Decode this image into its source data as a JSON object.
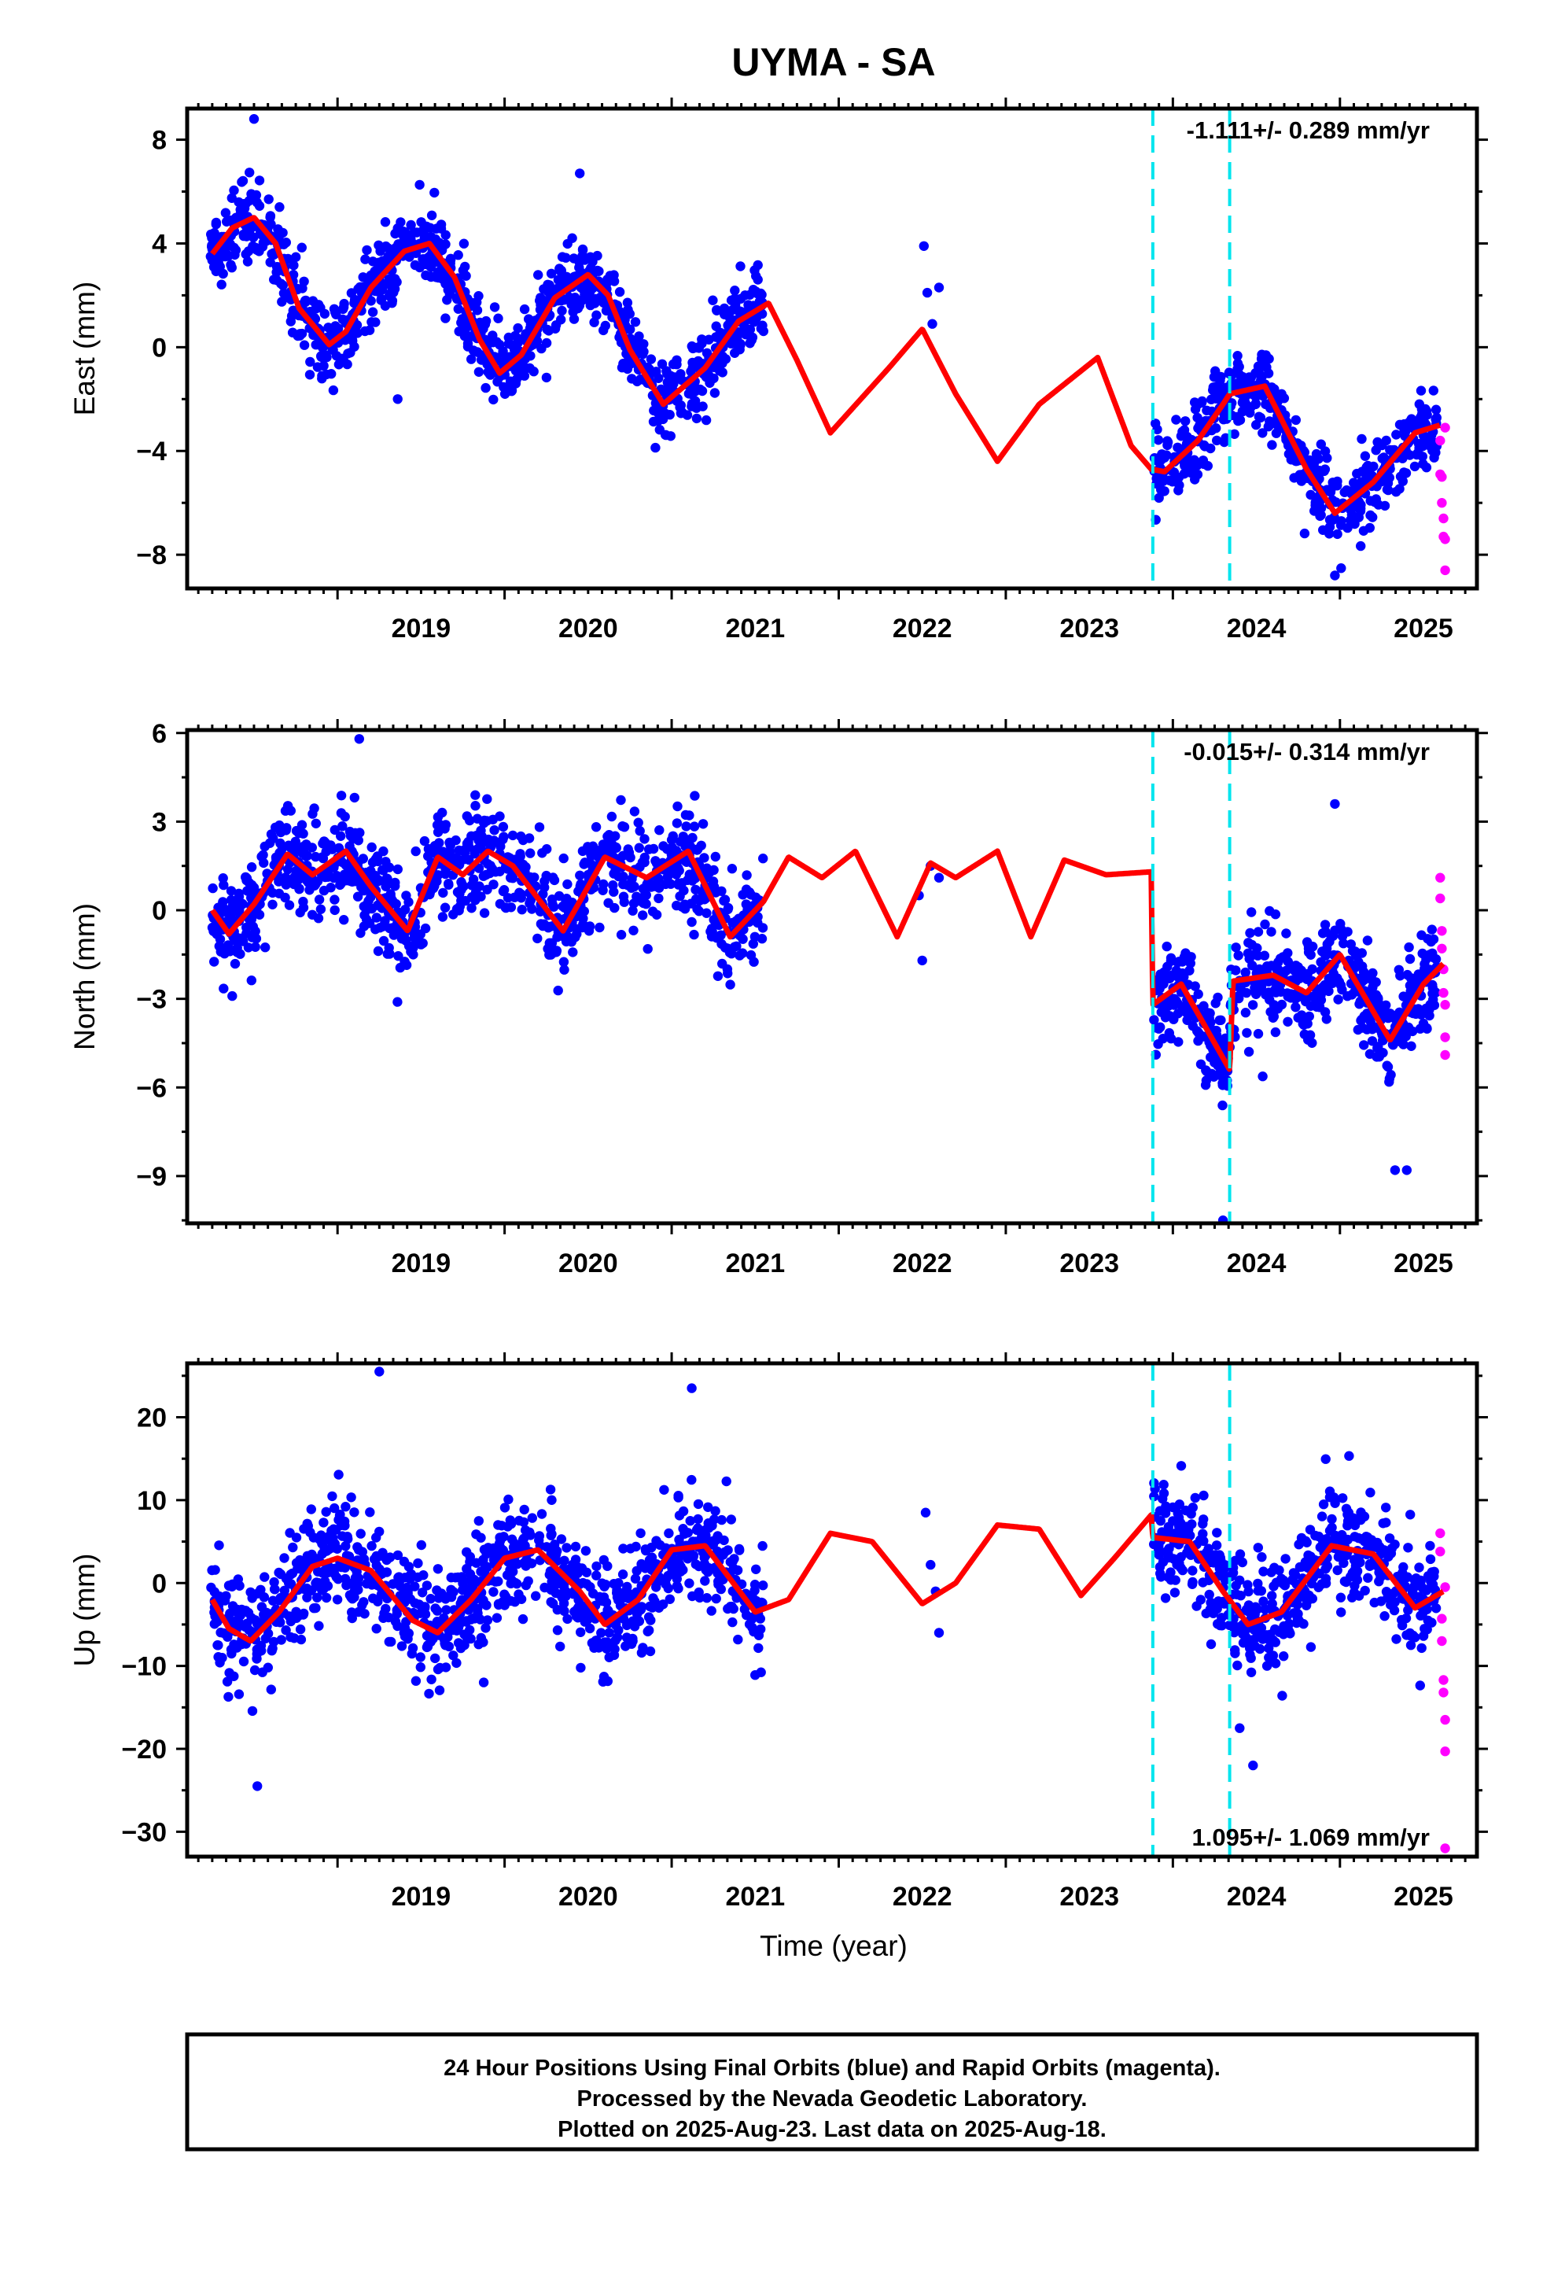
{
  "title": "UYMA - SA",
  "time_axis_label": "Time (year)",
  "colors": {
    "final_orbits": "#0000ff",
    "rapid_orbits": "#ff00ff",
    "model": "#ff0000",
    "equipment_change": "#00e5ee",
    "frame": "#000000"
  },
  "footer": {
    "line1": "24 Hour Positions Using Final Orbits (blue) and Rapid Orbits (magenta).",
    "line2": "Processed by the Nevada Geodetic Laboratory.",
    "line3": "Plotted on 2025-Aug-23. Last data on 2025-Aug-18."
  },
  "chart_data": [
    {
      "type": "scatter",
      "component": "east",
      "ylabel": "East (mm)",
      "rate_label": "-1.111+/- 0.289 mm/yr",
      "rate_position": "top-right",
      "xlim": [
        2018.1,
        2025.82
      ],
      "ylim": [
        -9.3,
        9.2
      ],
      "yticks": [
        8,
        4,
        0,
        -4,
        -8
      ],
      "ytick_labels": [
        "8",
        "4",
        "0",
        "−4",
        "−8"
      ],
      "xticks": [
        2019,
        2020,
        2021,
        2022,
        2023,
        2024,
        2025
      ],
      "xtick_labels": [
        "2019",
        "2020",
        "2021",
        "2022",
        "2023",
        "2024",
        "2025"
      ],
      "equipment_changes": [
        2023.88,
        2024.34
      ],
      "grid": false,
      "model_rate": -1.111,
      "model_params": {
        "offset": 5.3,
        "annual": [
          -0.2,
          -2.3
        ],
        "semiannual": [
          -0.55,
          0.25
        ],
        "steps": [
          {
            "t": 2023.88,
            "dy": 0.0
          }
        ]
      },
      "model_curve": {
        "x": [
          2018.25,
          2018.37,
          2018.5,
          2018.63,
          2018.77,
          2018.95,
          2019.05,
          2019.2,
          2019.4,
          2019.55,
          2019.7,
          2019.85,
          2019.97,
          2020.1,
          2020.3,
          2020.5,
          2020.62,
          2020.75,
          2020.95,
          2021.2,
          2021.4,
          2021.58,
          2021.75,
          2021.95,
          2022.3,
          2022.5,
          2022.7,
          2022.95,
          2023.2,
          2023.55,
          2023.75,
          2023.87,
          2023.95,
          2024.15,
          2024.3,
          2024.34,
          2024.55,
          2024.8,
          2024.97,
          2025.2,
          2025.45,
          2025.6
        ],
        "y": [
          3.6,
          4.6,
          5.0,
          4.0,
          1.5,
          0.1,
          0.6,
          2.3,
          3.7,
          4.0,
          2.7,
          0.3,
          -1.0,
          -0.3,
          1.9,
          2.8,
          2.0,
          -0.1,
          -2.2,
          -0.8,
          1.0,
          1.7,
          -0.5,
          -3.3,
          -0.8,
          0.7,
          -1.8,
          -4.4,
          -2.2,
          -0.4,
          -3.8,
          -4.7,
          -4.8,
          -3.6,
          -2.2,
          -1.8,
          -1.5,
          -4.7,
          -6.4,
          -5.2,
          -3.3,
          -3.0
        ]
      },
      "series": [
        {
          "name": "Final Orbits (blue)",
          "x_range": [
            2018.24,
            2025.58
          ],
          "gap": [
            2021.55,
            2023.88
          ],
          "count": 1530,
          "scatter_sd": 0.75,
          "isolated_points": [
            [
              2022.51,
              3.9
            ],
            [
              2022.53,
              2.1
            ],
            [
              2022.56,
              0.9
            ],
            [
              2022.6,
              2.3
            ],
            [
              2018.5,
              8.8
            ],
            [
              2019.36,
              -2.0
            ],
            [
              2020.45,
              6.7
            ],
            [
              2024.97,
              -8.8
            ]
          ]
        },
        {
          "name": "Rapid Orbits (magenta)",
          "x": [
            2025.6,
            2025.6,
            2025.61,
            2025.61,
            2025.62,
            2025.62,
            2025.63,
            2025.63,
            2025.63
          ],
          "y": [
            -3.6,
            -4.9,
            -5.0,
            -6.0,
            -6.6,
            -7.3,
            -7.4,
            -8.6,
            -3.1
          ]
        }
      ]
    },
    {
      "type": "scatter",
      "component": "north",
      "ylabel": "North (mm)",
      "rate_label": "-0.015+/- 0.314 mm/yr",
      "rate_position": "top-right",
      "xlim": [
        2018.1,
        2025.82
      ],
      "ylim": [
        -10.6,
        6.1
      ],
      "yticks": [
        6,
        3,
        0,
        -3,
        -6,
        -9
      ],
      "ytick_labels": [
        "6",
        "3",
        "0",
        "−3",
        "−6",
        "−9"
      ],
      "xticks": [
        2019,
        2020,
        2021,
        2022,
        2023,
        2024,
        2025
      ],
      "xtick_labels": [
        "2019",
        "2020",
        "2021",
        "2022",
        "2023",
        "2024",
        "2025"
      ],
      "equipment_changes": [
        2023.88,
        2024.34
      ],
      "grid": false,
      "model_rate": -0.015,
      "model_params": {
        "offset": 0.9,
        "annual": [
          0.0,
          0.0
        ],
        "semiannual": [
          -0.8,
          0.45
        ],
        "steps": [
          {
            "t": 2023.88,
            "dy": -4.3
          }
        ]
      },
      "model_curve": {
        "x": [
          2018.25,
          2018.35,
          2018.5,
          2018.7,
          2018.85,
          2019.05,
          2019.2,
          2019.42,
          2019.6,
          2019.75,
          2019.9,
          2020.05,
          2020.35,
          2020.6,
          2020.85,
          2021.1,
          2021.35,
          2021.55,
          2021.7,
          2021.9,
          2022.1,
          2022.35,
          2022.55,
          2022.7,
          2022.95,
          2023.15,
          2023.35,
          2023.6,
          2023.87,
          2023.88,
          2024.05,
          2024.2,
          2024.34,
          2024.36,
          2024.6,
          2024.8,
          2025.0,
          2025.3,
          2025.5,
          2025.62
        ],
        "y": [
          0.0,
          -0.8,
          0.2,
          1.9,
          1.2,
          2.0,
          0.8,
          -0.7,
          1.8,
          1.2,
          2.0,
          1.5,
          -0.7,
          1.8,
          1.1,
          2.0,
          -0.9,
          0.3,
          1.8,
          1.1,
          2.0,
          -0.9,
          1.6,
          1.1,
          2.0,
          -0.9,
          1.7,
          1.2,
          1.3,
          -3.2,
          -2.5,
          -4.0,
          -5.4,
          -2.4,
          -2.2,
          -2.8,
          -1.5,
          -4.4,
          -2.5,
          -1.8
        ]
      },
      "series": [
        {
          "name": "Final Orbits (blue)",
          "x_range": [
            2018.24,
            2025.58
          ],
          "gap": [
            2021.55,
            2023.88
          ],
          "count": 1530,
          "scatter_sd": 0.85,
          "isolated_points": [
            [
              2022.48,
              0.5
            ],
            [
              2022.5,
              -1.7
            ],
            [
              2022.55,
              1.5
            ],
            [
              2022.6,
              1.1
            ],
            [
              2019.13,
              5.8
            ],
            [
              2024.97,
              3.6
            ],
            [
              2024.3,
              -10.5
            ],
            [
              2025.33,
              -8.8
            ],
            [
              2025.4,
              -8.8
            ]
          ]
        },
        {
          "name": "Rapid Orbits (magenta)",
          "x": [
            2025.6,
            2025.6,
            2025.61,
            2025.61,
            2025.62,
            2025.62,
            2025.63,
            2025.63,
            2025.63
          ],
          "y": [
            1.1,
            0.4,
            -0.7,
            -1.3,
            -2.0,
            -2.8,
            -4.3,
            -4.9,
            -3.2
          ]
        }
      ]
    },
    {
      "type": "scatter",
      "component": "up",
      "ylabel": "Up (mm)",
      "rate_label": "1.095+/- 1.069 mm/yr",
      "rate_position": "bottom-right",
      "xlim": [
        2018.1,
        2025.82
      ],
      "ylim": [
        -33,
        26.5
      ],
      "yticks": [
        20,
        10,
        0,
        -10,
        -20,
        -30
      ],
      "ytick_labels": [
        "20",
        "10",
        "0",
        "−10",
        "−20",
        "−30"
      ],
      "xticks": [
        2019,
        2020,
        2021,
        2022,
        2023,
        2024,
        2025
      ],
      "xtick_labels": [
        "2019",
        "2020",
        "2021",
        "2022",
        "2023",
        "2024",
        "2025"
      ],
      "equipment_changes": [
        2023.88,
        2024.34
      ],
      "grid": false,
      "model_rate": 1.095,
      "model_params": {
        "offset": -1.0,
        "annual": [
          -5.2,
          -1.8
        ],
        "semiannual": [
          0.4,
          0.3
        ],
        "steps": [
          {
            "t": 2023.88,
            "dy": -2.5
          }
        ]
      },
      "model_curve": {
        "x": [
          2018.25,
          2018.35,
          2018.48,
          2018.65,
          2018.85,
          2019.0,
          2019.2,
          2019.45,
          2019.6,
          2019.8,
          2020.0,
          2020.2,
          2020.45,
          2020.6,
          2020.8,
          2021.0,
          2021.2,
          2021.5,
          2021.7,
          2021.95,
          2022.2,
          2022.5,
          2022.7,
          2022.95,
          2023.2,
          2023.45,
          2023.65,
          2023.87,
          2023.88,
          2024.1,
          2024.3,
          2024.45,
          2024.65,
          2024.95,
          2025.2,
          2025.45,
          2025.62
        ],
        "y": [
          -2.0,
          -5.5,
          -7.0,
          -3.5,
          2.0,
          3.0,
          1.5,
          -4.5,
          -6.0,
          -2.0,
          3.0,
          4.0,
          -1.0,
          -5.0,
          -2.0,
          4.0,
          4.5,
          -3.5,
          -2.0,
          6.0,
          5.0,
          -2.5,
          0.0,
          7.0,
          6.5,
          -1.5,
          3.0,
          8.2,
          5.5,
          5.0,
          -1.0,
          -5.0,
          -3.5,
          4.5,
          3.5,
          -3.0,
          -1.0
        ]
      },
      "series": [
        {
          "name": "Final Orbits (blue)",
          "x_range": [
            2018.24,
            2025.58
          ],
          "gap": [
            2021.55,
            2023.88
          ],
          "count": 1530,
          "scatter_sd": 3.3,
          "isolated_points": [
            [
              2022.52,
              8.5
            ],
            [
              2022.55,
              2.2
            ],
            [
              2022.58,
              -1.0
            ],
            [
              2022.6,
              -6.0
            ],
            [
              2019.25,
              25.5
            ],
            [
              2021.12,
              23.5
            ],
            [
              2018.52,
              -24.5
            ],
            [
              2024.48,
              -22.0
            ],
            [
              2024.4,
              -17.5
            ]
          ]
        },
        {
          "name": "Rapid Orbits (magenta)",
          "x": [
            2025.6,
            2025.6,
            2025.61,
            2025.61,
            2025.62,
            2025.62,
            2025.63,
            2025.63,
            2025.63,
            2025.63
          ],
          "y": [
            6.0,
            3.8,
            -4.3,
            -7.0,
            -11.7,
            -13.2,
            -16.5,
            -20.3,
            -32.0,
            -0.5
          ]
        }
      ]
    }
  ]
}
